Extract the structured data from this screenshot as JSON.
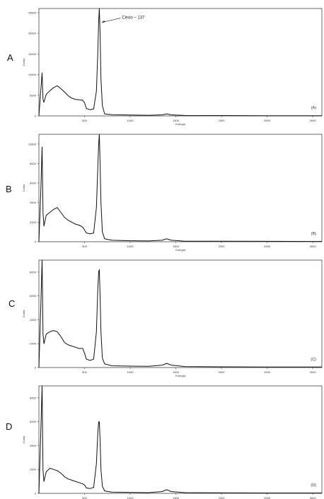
{
  "chart_data": [
    {
      "type": "line",
      "panel_label": "A",
      "corner_label": "(A)",
      "xlabel": "Energia",
      "ylabel": "Conts",
      "xlim": [
        0,
        3100
      ],
      "ylim": [
        0,
        26000
      ],
      "xticks": [
        "500",
        "1000",
        "1500",
        "2000",
        "2500",
        "3000"
      ],
      "yticks": [
        "0",
        "5000",
        "10000",
        "15000",
        "20000",
        "25000"
      ],
      "annotation": "Césio – 137",
      "annotation_x": 662,
      "annotation_y": 23000,
      "series": [
        {
          "x": [
            0,
            20,
            35,
            45,
            55,
            80,
            120,
            160,
            200,
            240,
            280,
            320,
            360,
            400,
            440,
            480,
            500,
            520,
            560,
            600,
            630,
            645,
            655,
            662,
            670,
            680,
            695,
            720,
            800,
            1000,
            1200,
            1350,
            1400,
            1450,
            1600,
            2000,
            2500,
            3000,
            3100
          ],
          "y": [
            0,
            6000,
            10400,
            4000,
            3300,
            5200,
            6100,
            6800,
            7300,
            6600,
            5800,
            4900,
            4300,
            4000,
            3900,
            3800,
            3200,
            1800,
            1500,
            1700,
            6000,
            15000,
            23000,
            26000,
            20000,
            9000,
            2500,
            500,
            300,
            200,
            150,
            250,
            500,
            250,
            100,
            80,
            50,
            40,
            40
          ]
        }
      ]
    },
    {
      "type": "line",
      "panel_label": "B",
      "corner_label": "(B)",
      "xlabel": "Energia",
      "ylabel": "Conts",
      "xlim": [
        0,
        3100
      ],
      "ylim": [
        0,
        11000
      ],
      "xticks": [
        "500",
        "1000",
        "1500",
        "2000",
        "2500",
        "3000"
      ],
      "yticks": [
        "0",
        "2000",
        "4000",
        "6000",
        "8000",
        "10000"
      ],
      "series": [
        {
          "x": [
            0,
            20,
            35,
            45,
            55,
            80,
            120,
            160,
            200,
            240,
            280,
            320,
            360,
            400,
            440,
            480,
            500,
            520,
            560,
            600,
            630,
            645,
            655,
            662,
            670,
            680,
            695,
            720,
            800,
            1000,
            1200,
            1350,
            1400,
            1450,
            1600,
            2000,
            2500,
            3000,
            3100
          ],
          "y": [
            0,
            5000,
            9700,
            3000,
            1600,
            2700,
            3000,
            3300,
            3500,
            3000,
            2500,
            2200,
            2000,
            1800,
            1700,
            1500,
            1200,
            900,
            800,
            900,
            3500,
            7500,
            10000,
            11000,
            8000,
            4000,
            1000,
            300,
            150,
            100,
            80,
            150,
            300,
            150,
            60,
            50,
            40,
            30,
            30
          ]
        }
      ]
    },
    {
      "type": "line",
      "panel_label": "C",
      "corner_label": "(C)",
      "xlabel": "Energia",
      "ylabel": "Conts",
      "xlim": [
        0,
        3100
      ],
      "ylim": [
        0,
        9000
      ],
      "xticks": [
        "500",
        "1000",
        "1500",
        "2000",
        "2500",
        "3000"
      ],
      "yticks": [
        "0",
        "2000",
        "4000",
        "6000",
        "8000"
      ],
      "series": [
        {
          "x": [
            0,
            20,
            35,
            45,
            55,
            80,
            120,
            160,
            200,
            240,
            280,
            320,
            360,
            400,
            440,
            480,
            500,
            520,
            560,
            600,
            630,
            645,
            655,
            662,
            670,
            680,
            695,
            720,
            800,
            1000,
            1200,
            1350,
            1400,
            1450,
            1600,
            2000,
            2500,
            3000,
            3100
          ],
          "y": [
            0,
            5000,
            9000,
            2800,
            2000,
            2800,
            3000,
            3100,
            3000,
            2600,
            2100,
            1900,
            1800,
            1700,
            1600,
            1600,
            1200,
            700,
            600,
            700,
            3000,
            6500,
            8000,
            8200,
            6000,
            3000,
            800,
            300,
            150,
            120,
            100,
            200,
            350,
            200,
            80,
            60,
            50,
            40,
            40
          ]
        }
      ]
    },
    {
      "type": "line",
      "panel_label": "D",
      "corner_label": "(D)",
      "xlabel": "",
      "ylabel": "Conts",
      "xlim": [
        0,
        3100
      ],
      "ylim": [
        0,
        9000
      ],
      "xticks": [
        "500",
        "1000",
        "1500",
        "2000",
        "2500",
        "3000"
      ],
      "yticks": [
        "0",
        "2000",
        "4000",
        "6000",
        "8000"
      ],
      "series": [
        {
          "x": [
            0,
            20,
            35,
            45,
            55,
            80,
            120,
            160,
            200,
            240,
            280,
            320,
            360,
            400,
            440,
            480,
            500,
            520,
            560,
            600,
            630,
            645,
            655,
            662,
            670,
            680,
            695,
            720,
            800,
            1000,
            1200,
            1350,
            1400,
            1450,
            1600,
            2000,
            2500,
            3000,
            3100
          ],
          "y": [
            0,
            5000,
            9000,
            1900,
            1000,
            1800,
            2100,
            2000,
            1900,
            1700,
            1400,
            1200,
            1100,
            1000,
            900,
            800,
            700,
            450,
            400,
            500,
            2500,
            5000,
            6000,
            6000,
            4500,
            2000,
            600,
            200,
            100,
            80,
            60,
            150,
            300,
            150,
            60,
            40,
            30,
            30,
            30
          ]
        }
      ]
    }
  ]
}
